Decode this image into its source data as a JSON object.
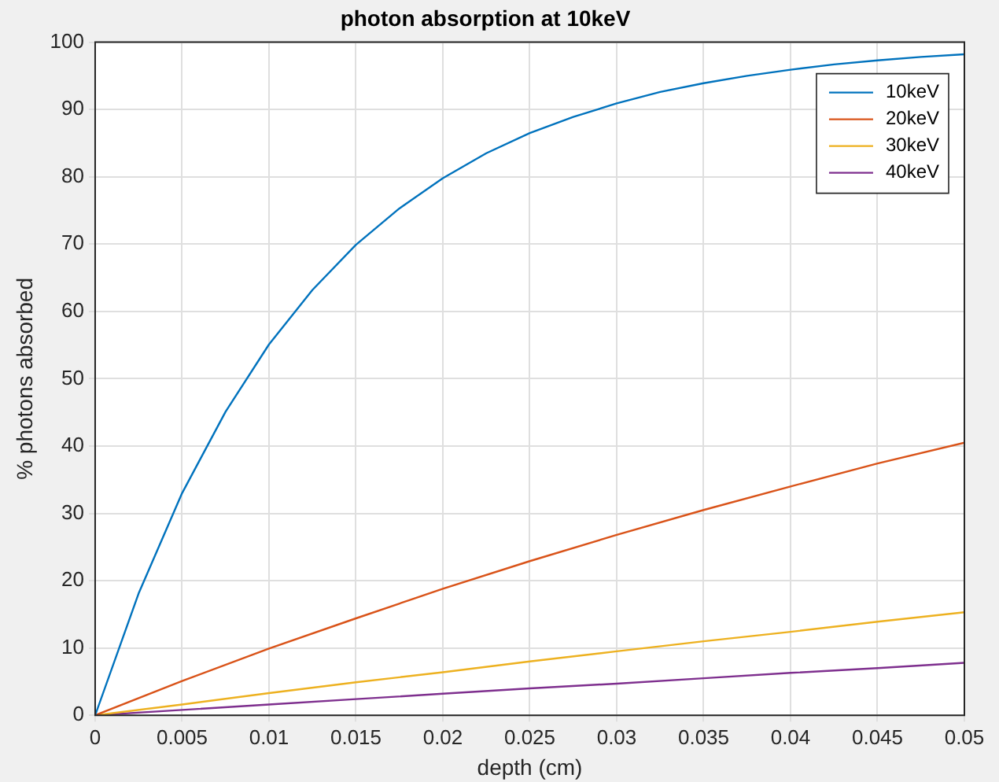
{
  "chart_data": {
    "type": "line",
    "title": "photon absorption at 10keV",
    "xlabel": "depth (cm)",
    "ylabel": "% photons absorbed",
    "x": [
      0,
      0.0025,
      0.005,
      0.0075,
      0.01,
      0.0125,
      0.015,
      0.0175,
      0.02,
      0.0225,
      0.025,
      0.0275,
      0.03,
      0.0325,
      0.035,
      0.0375,
      0.04,
      0.0425,
      0.045,
      0.0475,
      0.05
    ],
    "series": [
      {
        "name": "10keV",
        "color": "#0072bd",
        "values": [
          0,
          18.1,
          33.0,
          45.1,
          55.1,
          63.2,
          69.9,
          75.3,
          79.8,
          83.5,
          86.5,
          88.9,
          90.9,
          92.6,
          93.9,
          95.0,
          95.9,
          96.7,
          97.3,
          97.8,
          98.2
        ]
      },
      {
        "name": "20keV",
        "color": "#d95319",
        "x": [
          0,
          0.005,
          0.01,
          0.015,
          0.02,
          0.025,
          0.03,
          0.035,
          0.04,
          0.045,
          0.05
        ],
        "values": [
          0,
          5.1,
          9.9,
          14.4,
          18.8,
          22.9,
          26.8,
          30.5,
          34.0,
          37.4,
          40.5
        ]
      },
      {
        "name": "30keV",
        "color": "#edb120",
        "x": [
          0,
          0.005,
          0.01,
          0.015,
          0.02,
          0.025,
          0.03,
          0.035,
          0.04,
          0.045,
          0.05
        ],
        "values": [
          0,
          1.6,
          3.3,
          4.9,
          6.4,
          8.0,
          9.5,
          11.0,
          12.4,
          13.9,
          15.3
        ]
      },
      {
        "name": "40keV",
        "color": "#7e2f8e",
        "x": [
          0,
          0.005,
          0.01,
          0.015,
          0.02,
          0.025,
          0.03,
          0.035,
          0.04,
          0.045,
          0.05
        ],
        "values": [
          0,
          0.8,
          1.6,
          2.4,
          3.2,
          4.0,
          4.7,
          5.5,
          6.3,
          7.0,
          7.8
        ]
      }
    ],
    "xlim": [
      0,
      0.05
    ],
    "xticks": [
      0,
      0.005,
      0.01,
      0.015,
      0.02,
      0.025,
      0.03,
      0.035,
      0.04,
      0.045,
      0.05
    ],
    "ylim": [
      0,
      100
    ],
    "yticks": [
      0,
      10,
      20,
      30,
      40,
      50,
      60,
      70,
      80,
      90,
      100
    ],
    "grid": true,
    "legend": "top right",
    "marker": "none",
    "line_style": "solid"
  }
}
